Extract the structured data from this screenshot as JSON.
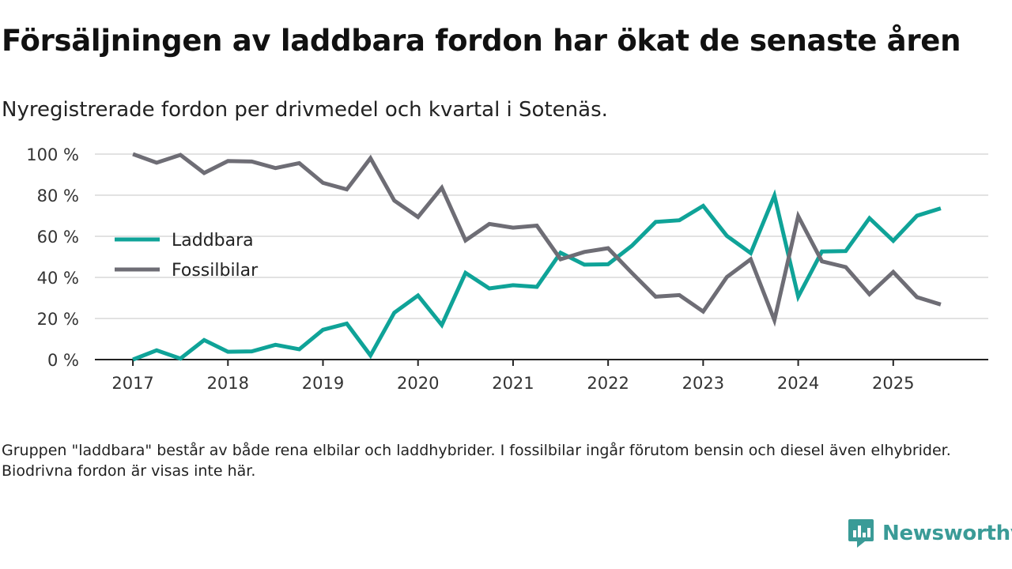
{
  "title": "Försäljningen av laddbara fordon har ökat de senaste åren",
  "subtitle": "Nyregistrerade fordon per drivmedel och kvartal i Sotenäs.",
  "footnote": "Gruppen \"laddbara\" består av både rena elbilar och laddhybrider. I fossilbilar ingår förutom bensin och diesel även elhybrider. Biodrivna fordon är visas inte här.",
  "logo": {
    "text": "Newsworthy",
    "icon": "newsworthy-logo-icon"
  },
  "colors": {
    "laddbara": "#0fa398",
    "fossil": "#6e6d75",
    "grid": "#d9d9d9",
    "axis": "#222222"
  },
  "chart_data": {
    "type": "line",
    "x_start": 2017.0,
    "x_step": 0.25,
    "xlim": [
      2016.6,
      2026.0
    ],
    "ylim": [
      0,
      100
    ],
    "x_ticks": [
      2017,
      2018,
      2019,
      2020,
      2021,
      2022,
      2023,
      2024,
      2025
    ],
    "x_tick_labels": [
      "2017",
      "2018",
      "2019",
      "2020",
      "2021",
      "2022",
      "2023",
      "2024",
      "2025"
    ],
    "y_ticks": [
      0,
      20,
      40,
      60,
      80,
      100
    ],
    "y_tick_labels": [
      "0 %",
      "20 %",
      "40 %",
      "60 %",
      "80 %",
      "100 %"
    ],
    "legend_position": "left",
    "grid": true,
    "series": [
      {
        "name": "Laddbara",
        "color_key": "laddbara",
        "values": [
          0,
          4.5,
          0.5,
          9.5,
          3.8,
          4,
          7.2,
          5,
          14.5,
          17.5,
          2,
          22.8,
          31.2,
          16.8,
          42.2,
          34.6,
          36.2,
          35.4,
          52,
          46.2,
          46.4,
          55.4,
          67,
          67.8,
          74.8,
          60.2,
          51.8,
          79.8,
          30.6,
          52.6,
          52.8,
          68.8,
          57.8,
          70,
          73.6
        ]
      },
      {
        "name": "Fossilbilar",
        "color_key": "fossil",
        "values": [
          100,
          95.8,
          99.6,
          90.8,
          96.6,
          96.4,
          93.2,
          95.6,
          86,
          82.8,
          98,
          77.4,
          69.4,
          83.6,
          58,
          66,
          64.2,
          65.2,
          48.8,
          52.4,
          54.2,
          42.2,
          30.6,
          31.4,
          23.4,
          40.2,
          48.8,
          19.2,
          69.8,
          47.8,
          45,
          31.8,
          42.6,
          30.4,
          26.8
        ]
      }
    ]
  }
}
